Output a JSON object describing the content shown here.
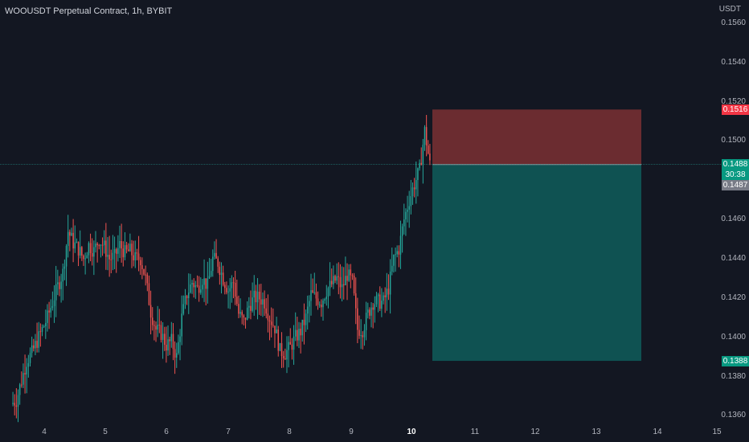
{
  "header": {
    "title": "WOOUSDT Perpetual Contract, 1h, BYBIT"
  },
  "axis": {
    "unit": "USDT",
    "y_ticks": [
      "0.1560",
      "0.1540",
      "0.1520",
      "0.1500",
      "0.1460",
      "0.1440",
      "0.1420",
      "0.1400",
      "0.1380",
      "0.1360"
    ],
    "x_ticks": [
      "4",
      "5",
      "6",
      "7",
      "8",
      "9",
      "10",
      "11",
      "12",
      "13",
      "14",
      "15"
    ],
    "x_bold": "10"
  },
  "tags": {
    "stop": "0.1516",
    "last": "0.1488",
    "countdown": "30:38",
    "bid": "0.1487",
    "target": "0.1388"
  },
  "colors": {
    "background": "#131722",
    "up": "#26a69a",
    "down": "#ef5350",
    "stop_zone": "#6b2c30",
    "target_zone": "#0f5252",
    "stop_tag": "#f23645",
    "last_tag": "#089981",
    "bid_tag": "#787b86",
    "target_tag": "#089981"
  },
  "chart_data": {
    "type": "candlestick",
    "title": "WOOUSDT Perpetual Contract, 1h, BYBIT",
    "y_unit": "USDT",
    "ylim": [
      0.1352,
      0.1564
    ],
    "x_labels": [
      "4",
      "5",
      "6",
      "7",
      "8",
      "9",
      "10",
      "11",
      "12",
      "13",
      "14",
      "15"
    ],
    "close_path": [
      0.1366,
      0.1368,
      0.1378,
      0.1388,
      0.1392,
      0.1398,
      0.1404,
      0.141,
      0.1418,
      0.1426,
      0.1433,
      0.1454,
      0.1448,
      0.1445,
      0.144,
      0.1447,
      0.1444,
      0.145,
      0.1446,
      0.144,
      0.1441,
      0.1447,
      0.1443,
      0.1444,
      0.144,
      0.144,
      0.143,
      0.1413,
      0.1404,
      0.1402,
      0.1396,
      0.1398,
      0.139,
      0.141,
      0.1422,
      0.1428,
      0.1425,
      0.143,
      0.1426,
      0.144,
      0.1438,
      0.143,
      0.1424,
      0.1428,
      0.1412,
      0.1408,
      0.1416,
      0.142,
      0.142,
      0.1418,
      0.141,
      0.1405,
      0.1393,
      0.1392,
      0.1395,
      0.14,
      0.1403,
      0.141,
      0.1422,
      0.142,
      0.1418,
      0.1424,
      0.1427,
      0.143,
      0.1425,
      0.1432,
      0.1428,
      0.1404,
      0.1404,
      0.1412,
      0.1418,
      0.1418,
      0.1418,
      0.1425,
      0.144,
      0.1445,
      0.146,
      0.147,
      0.1478,
      0.1485,
      0.1505,
      0.1488
    ],
    "position": {
      "type": "short",
      "entry": 0.1488,
      "stop": 0.1516,
      "target": 0.1388
    },
    "last_price": 0.1488,
    "grid": false
  }
}
